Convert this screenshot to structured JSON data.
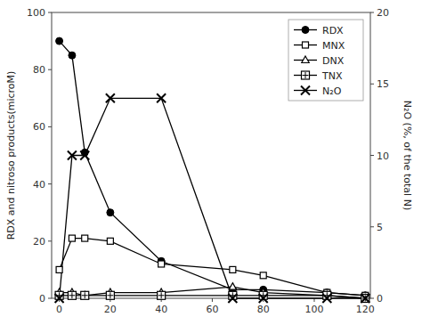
{
  "chart_data": {
    "type": "line",
    "x": [
      0,
      5,
      10,
      20,
      40,
      68,
      80,
      105,
      120
    ],
    "series": [
      {
        "name": "RDX",
        "color": "#000000",
        "marker": "circle",
        "values": [
          90,
          85,
          51,
          30,
          13,
          3,
          3,
          2,
          1
        ]
      },
      {
        "name": "MNX",
        "color": "#000000",
        "marker": "square",
        "values": [
          10,
          21,
          21,
          20,
          12,
          10,
          8,
          2,
          1
        ]
      },
      {
        "name": "DNX",
        "color": "#000000",
        "marker": "triangle",
        "values": [
          2,
          2,
          1,
          2,
          2,
          4,
          2,
          1,
          0
        ]
      },
      {
        "name": "TNX",
        "color": "#000000",
        "marker": "square-plus",
        "values": [
          1,
          1,
          1,
          1,
          1,
          1,
          1,
          1,
          0
        ]
      },
      {
        "name": "N₂O",
        "color": "#000000",
        "marker": "x",
        "axis": "y2",
        "values": [
          0,
          10,
          10,
          14,
          14,
          0,
          0,
          0,
          0
        ]
      }
    ],
    "y_label": "RDX and nitroso products(microM)",
    "y2_label": "N₂O (%, of the total N)",
    "xlim": [
      -3,
      122
    ],
    "ylim": [
      0,
      100
    ],
    "y2lim": [
      0,
      20
    ],
    "xticks": [
      0,
      20,
      40,
      60,
      80,
      100,
      120
    ],
    "yticks": [
      0,
      20,
      40,
      60,
      80,
      100
    ],
    "y2ticks": [
      0,
      5,
      10,
      15,
      20
    ],
    "legend": "upper right"
  }
}
